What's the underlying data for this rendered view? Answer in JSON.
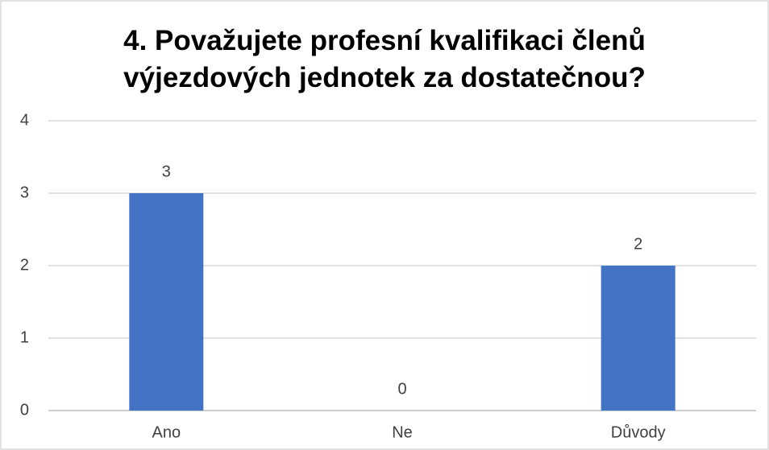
{
  "chart_data": {
    "type": "bar",
    "title": "4. Považujete profesní kvalifikaci členů výjezdových jednotek za dostatečnou?",
    "categories": [
      "Ano",
      "Ne",
      "Důvody"
    ],
    "values": [
      3,
      0,
      2
    ],
    "color": "#4472c4",
    "ylim": [
      0,
      4
    ],
    "yticks": [
      0,
      1,
      2,
      3,
      4
    ],
    "grid": true
  }
}
